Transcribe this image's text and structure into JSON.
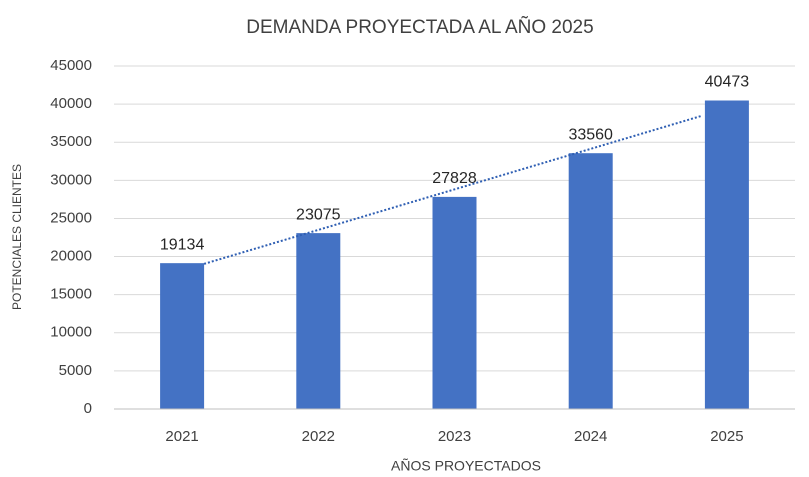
{
  "chart_data": {
    "type": "bar",
    "title": "DEMANDA PROYECTADA AL AÑO 2025",
    "x_label": "AÑOS PROYECTADOS",
    "y_label": "POTENCIALES CLIENTES",
    "categories": [
      "2021",
      "2022",
      "2023",
      "2024",
      "2025"
    ],
    "values": [
      19134,
      23075,
      27828,
      33560,
      40473
    ],
    "color": "#4472c4",
    "ylim": [
      0,
      45000
    ],
    "yticks": [
      0,
      5000,
      10000,
      15000,
      20000,
      25000,
      30000,
      35000,
      40000,
      45000
    ],
    "grid": true,
    "trendline": "linear",
    "trendline_color": "#2f5fb3"
  }
}
